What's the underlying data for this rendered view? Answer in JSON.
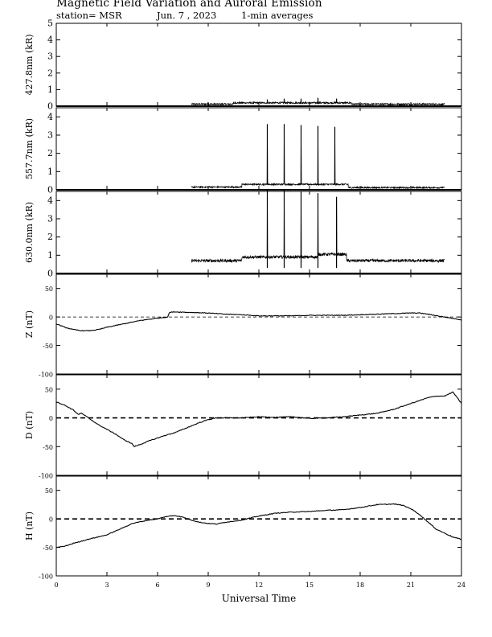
{
  "header": {
    "title": "Magnetic Field Variation and Auroral Emission",
    "station": "station= MSR",
    "date": "Jun. 7 , 2023",
    "averaging": "1-min averages"
  },
  "chart_data": [
    {
      "type": "line",
      "ylabel": "427.8nm (kR)",
      "ylim": [
        0,
        5
      ],
      "yticks": [
        0,
        1,
        2,
        3,
        4,
        5
      ],
      "data_window_ut": [
        8.0,
        23.0
      ],
      "baseline_segments": [
        {
          "from": 8.0,
          "to": 10.5,
          "value": 0.12
        },
        {
          "from": 10.5,
          "to": 17.5,
          "value": 0.2
        },
        {
          "from": 17.5,
          "to": 23.0,
          "value": 0.12
        }
      ],
      "spikes": [
        {
          "x": 12.5,
          "y": 0.4
        },
        {
          "x": 13.5,
          "y": 0.45
        },
        {
          "x": 14.5,
          "y": 0.45
        },
        {
          "x": 15.5,
          "y": 0.5
        },
        {
          "x": 16.6,
          "y": 0.45
        }
      ],
      "noise": 0.05
    },
    {
      "type": "line",
      "ylabel": "557.7nm (kR)",
      "ylim": [
        0,
        4.5
      ],
      "yticks": [
        0,
        1,
        2,
        3,
        4
      ],
      "data_window_ut": [
        8.0,
        23.0
      ],
      "baseline_segments": [
        {
          "from": 8.0,
          "to": 11.0,
          "value": 0.15
        },
        {
          "from": 11.0,
          "to": 17.3,
          "value": 0.3
        },
        {
          "from": 17.3,
          "to": 23.0,
          "value": 0.12
        }
      ],
      "spikes": [
        {
          "x": 12.5,
          "y": 3.6
        },
        {
          "x": 13.5,
          "y": 3.6
        },
        {
          "x": 14.5,
          "y": 3.55
        },
        {
          "x": 15.5,
          "y": 3.5
        },
        {
          "x": 16.5,
          "y": 3.45
        }
      ],
      "noise": 0.04
    },
    {
      "type": "line",
      "ylabel": "630.0nm (kR)",
      "ylim": [
        0,
        4.5
      ],
      "yticks": [
        0,
        1,
        2,
        3,
        4
      ],
      "data_window_ut": [
        8.0,
        23.0
      ],
      "baseline_segments": [
        {
          "from": 8.0,
          "to": 11.0,
          "value": 0.7
        },
        {
          "from": 11.0,
          "to": 15.5,
          "value": 0.9
        },
        {
          "from": 15.5,
          "to": 17.2,
          "value": 1.05
        },
        {
          "from": 17.2,
          "to": 23.0,
          "value": 0.7
        }
      ],
      "spikes": [
        {
          "x": 12.5,
          "y": 4.6
        },
        {
          "x": 13.5,
          "y": 4.6
        },
        {
          "x": 14.5,
          "y": 4.5
        },
        {
          "x": 15.5,
          "y": 4.4
        },
        {
          "x": 16.6,
          "y": 4.2
        }
      ],
      "noise": 0.08
    },
    {
      "type": "line",
      "ylabel": "Z (nT)",
      "ylim": [
        -100,
        75
      ],
      "yticks": [
        -100,
        -50,
        0,
        50
      ],
      "zero_line": "thin-dashed",
      "points": [
        [
          0,
          -12
        ],
        [
          0.5,
          -18
        ],
        [
          1,
          -22
        ],
        [
          1.5,
          -24
        ],
        [
          2,
          -24
        ],
        [
          2.5,
          -22
        ],
        [
          3,
          -18
        ],
        [
          4,
          -12
        ],
        [
          5,
          -6
        ],
        [
          6,
          -2
        ],
        [
          6.6,
          0
        ],
        [
          6.7,
          8
        ],
        [
          7,
          9
        ],
        [
          8,
          8
        ],
        [
          9,
          7
        ],
        [
          10,
          5
        ],
        [
          11,
          4
        ],
        [
          12,
          2
        ],
        [
          13,
          2
        ],
        [
          14,
          2
        ],
        [
          15,
          3
        ],
        [
          16,
          3
        ],
        [
          17,
          3
        ],
        [
          18,
          4
        ],
        [
          19,
          5
        ],
        [
          20,
          6
        ],
        [
          21,
          7
        ],
        [
          21.5,
          7
        ],
        [
          22,
          5
        ],
        [
          23,
          0
        ],
        [
          24,
          -5
        ]
      ]
    },
    {
      "type": "line",
      "ylabel": "D (nT)",
      "ylim": [
        -100,
        75
      ],
      "yticks": [
        -100,
        -50,
        0,
        50
      ],
      "zero_line": "thick-dashed",
      "points": [
        [
          0,
          28
        ],
        [
          0.5,
          22
        ],
        [
          1,
          14
        ],
        [
          1.3,
          6
        ],
        [
          1.5,
          8
        ],
        [
          2,
          -2
        ],
        [
          2.5,
          -12
        ],
        [
          3,
          -20
        ],
        [
          3.5,
          -28
        ],
        [
          4,
          -38
        ],
        [
          4.5,
          -45
        ],
        [
          4.6,
          -50
        ],
        [
          5,
          -46
        ],
        [
          5.5,
          -40
        ],
        [
          6,
          -35
        ],
        [
          6.5,
          -30
        ],
        [
          7,
          -26
        ],
        [
          7.5,
          -20
        ],
        [
          8,
          -14
        ],
        [
          8.5,
          -8
        ],
        [
          9,
          -3
        ],
        [
          9.5,
          0
        ],
        [
          10,
          0
        ],
        [
          11,
          0
        ],
        [
          12,
          2
        ],
        [
          13,
          1
        ],
        [
          14,
          2
        ],
        [
          15,
          -1
        ],
        [
          16,
          0
        ],
        [
          17,
          2
        ],
        [
          18,
          5
        ],
        [
          19,
          8
        ],
        [
          20,
          15
        ],
        [
          21,
          25
        ],
        [
          22,
          35
        ],
        [
          22.5,
          38
        ],
        [
          23,
          38
        ],
        [
          23.5,
          45
        ],
        [
          24,
          25
        ]
      ]
    },
    {
      "type": "line",
      "ylabel": "H (nT)",
      "ylim": [
        -100,
        75
      ],
      "yticks": [
        -100,
        -50,
        0,
        50
      ],
      "zero_line": "thick-dashed",
      "points": [
        [
          0,
          -50
        ],
        [
          0.5,
          -48
        ],
        [
          1,
          -43
        ],
        [
          2,
          -35
        ],
        [
          3,
          -28
        ],
        [
          4,
          -15
        ],
        [
          4.5,
          -8
        ],
        [
          5,
          -5
        ],
        [
          5.5,
          -2
        ],
        [
          6,
          0
        ],
        [
          6.5,
          4
        ],
        [
          7,
          6
        ],
        [
          7.5,
          3
        ],
        [
          8,
          -2
        ],
        [
          8.5,
          -6
        ],
        [
          9,
          -8
        ],
        [
          9.5,
          -9
        ],
        [
          10,
          -6
        ],
        [
          11,
          -2
        ],
        [
          12,
          5
        ],
        [
          13,
          10
        ],
        [
          14,
          12
        ],
        [
          15,
          13
        ],
        [
          16,
          15
        ],
        [
          17,
          16
        ],
        [
          18,
          20
        ],
        [
          19,
          25
        ],
        [
          20,
          26
        ],
        [
          20.5,
          24
        ],
        [
          21,
          18
        ],
        [
          21.5,
          8
        ],
        [
          22,
          -5
        ],
        [
          22.5,
          -18
        ],
        [
          23,
          -25
        ],
        [
          23.5,
          -32
        ],
        [
          24,
          -36
        ]
      ]
    }
  ],
  "x_axis": {
    "label": "Universal Time",
    "xlim": [
      0,
      24
    ],
    "ticks": [
      "0",
      "3",
      "6",
      "9",
      "12",
      "15",
      "18",
      "21",
      "24"
    ]
  }
}
